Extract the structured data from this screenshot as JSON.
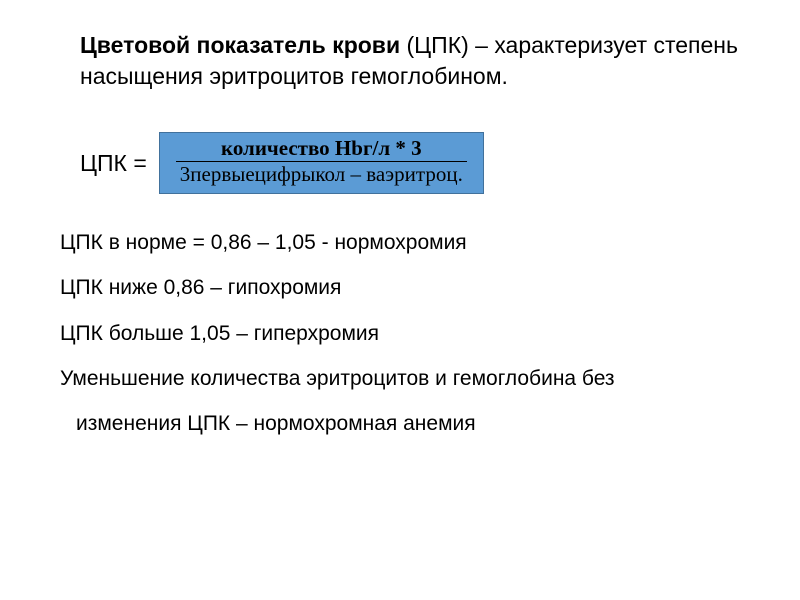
{
  "title": {
    "bold_part": "Цветовой показатель крови",
    "rest": " (ЦПК) – характеризует степень насыщения эритроцитов гемоглобином."
  },
  "formula": {
    "label": "ЦПК = ",
    "numerator": "количество Hbг/л * 3",
    "denominator": "3первыецифрыкол – ваэритроц.",
    "box_bg_color": "#5b9bd5",
    "box_border_color": "#41719c"
  },
  "lines": {
    "line1": "ЦПК в норме = 0,86 – 1,05 - нормохромия",
    "line2": "ЦПК ниже 0,86 – гипохромия",
    "line3": "ЦПК больше 1,05 – гиперхромия",
    "line4": "Уменьшение количества эритроцитов и гемоглобина без",
    "line5": "изменения ЦПК – нормохромная анемия"
  },
  "colors": {
    "background": "#ffffff",
    "text": "#000000"
  }
}
